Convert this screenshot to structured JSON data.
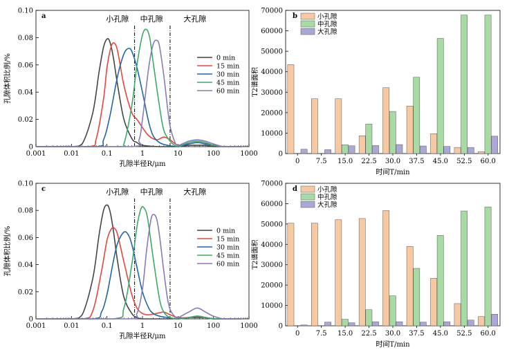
{
  "chart_data": [
    {
      "panel_label": "a",
      "type": "line",
      "xlabel": "孔隙半径R/μm",
      "ylabel": "孔隙体积比例/%",
      "x_scale": "log",
      "xlim": [
        0.001,
        1000
      ],
      "ylim": [
        0,
        0.1
      ],
      "x_ticks": [
        "0.001",
        "0.01",
        "0.1",
        "1",
        "10",
        "100",
        "1000"
      ],
      "y_ticks": [
        "0",
        "0.02",
        "0.04",
        "0.06",
        "0.08",
        "0.10"
      ],
      "dividers": [
        0.6,
        6
      ],
      "regions": [
        "小孔隙",
        "中孔隙",
        "大孔隙"
      ],
      "legend_position": "right",
      "series": [
        {
          "name": "0 min",
          "color": "#444444",
          "x": [
            0.01,
            0.02,
            0.04,
            0.06,
            0.08,
            0.1,
            0.12,
            0.15,
            0.2,
            0.3,
            0.5,
            0.7,
            1,
            3,
            10,
            20,
            35,
            60,
            100,
            200
          ],
          "y": [
            0,
            0.002,
            0.025,
            0.055,
            0.073,
            0.079,
            0.077,
            0.066,
            0.045,
            0.02,
            0.006,
            0.003,
            0.001,
            0.0,
            0.0,
            0.001,
            0.001,
            0.001,
            0.0,
            0
          ]
        },
        {
          "name": "15 min",
          "color": "#e8443a",
          "x": [
            0.03,
            0.05,
            0.08,
            0.1,
            0.13,
            0.16,
            0.2,
            0.3,
            0.5,
            0.7,
            1,
            1.5,
            2.5,
            4,
            6,
            10,
            20,
            35,
            60,
            100,
            200
          ],
          "y": [
            0,
            0.006,
            0.035,
            0.058,
            0.073,
            0.076,
            0.07,
            0.045,
            0.025,
            0.02,
            0.014,
            0.008,
            0.005,
            0.007,
            0.005,
            0.001,
            0.002,
            0.003,
            0.002,
            0.001,
            0
          ]
        },
        {
          "name": "30 min",
          "color": "#1f66a6",
          "x": [
            0.05,
            0.08,
            0.12,
            0.2,
            0.3,
            0.4,
            0.5,
            0.7,
            1,
            1.5,
            2,
            3,
            5,
            10,
            20,
            35,
            60,
            100,
            200
          ],
          "y": [
            0,
            0.005,
            0.022,
            0.052,
            0.068,
            0.072,
            0.07,
            0.058,
            0.04,
            0.018,
            0.008,
            0.003,
            0.001,
            0.0,
            0.002,
            0.003,
            0.002,
            0.001,
            0
          ]
        },
        {
          "name": "45 min",
          "color": "#3aaa66",
          "x": [
            0.2,
            0.3,
            0.5,
            0.7,
            1,
            1.3,
            1.6,
            2,
            3,
            4,
            6,
            8,
            10,
            20,
            35,
            60,
            100,
            200
          ],
          "y": [
            0,
            0.002,
            0.03,
            0.06,
            0.082,
            0.086,
            0.08,
            0.062,
            0.03,
            0.012,
            0.004,
            0.001,
            0.0,
            0.003,
            0.004,
            0.003,
            0.001,
            0
          ]
        },
        {
          "name": "60 min",
          "color": "#8a78b8",
          "x": [
            0.5,
            0.8,
            1,
            1.5,
            2,
            2.5,
            3,
            4,
            5,
            6,
            8,
            10,
            20,
            35,
            60,
            100,
            200
          ],
          "y": [
            0,
            0.005,
            0.02,
            0.058,
            0.075,
            0.078,
            0.074,
            0.052,
            0.03,
            0.015,
            0.004,
            0.001,
            0.004,
            0.005,
            0.004,
            0.002,
            0
          ]
        }
      ]
    },
    {
      "panel_label": "b",
      "type": "bar",
      "xlabel": "时间T/min",
      "ylabel": "T2谱面积",
      "ylim": [
        0,
        70000
      ],
      "y_ticks": [
        "0",
        "10000",
        "20000",
        "30000",
        "40000",
        "50000",
        "60000",
        "70000"
      ],
      "categories": [
        "0",
        "7.5",
        "15.0",
        "22.5",
        "30.0",
        "37.5",
        "45.0",
        "52.5",
        "60.0"
      ],
      "series": [
        {
          "name": "小孔隙",
          "color": "#f7c9a3",
          "values": [
            43500,
            26800,
            26800,
            8700,
            32200,
            23200,
            9700,
            3000,
            900
          ]
        },
        {
          "name": "中孔隙",
          "color": "#a8dba4",
          "values": [
            0,
            0,
            4300,
            14400,
            20600,
            37300,
            56300,
            67700,
            67700
          ]
        },
        {
          "name": "大孔隙",
          "color": "#a9a8d6",
          "values": [
            2100,
            1900,
            3800,
            3900,
            4400,
            3700,
            3500,
            3000,
            8500
          ]
        }
      ]
    },
    {
      "panel_label": "c",
      "type": "line",
      "xlabel": "孔隙半径R/μm",
      "ylabel": "孔隙体积比例/%",
      "x_scale": "log",
      "xlim": [
        0.001,
        1000
      ],
      "ylim": [
        0,
        0.1
      ],
      "x_ticks": [
        "0.001",
        "0.01",
        "0.1",
        "1",
        "10",
        "100",
        "1000"
      ],
      "y_ticks": [
        "0",
        "0.02",
        "0.04",
        "0.06",
        "0.08",
        "0.10"
      ],
      "dividers": [
        0.6,
        6
      ],
      "regions": [
        "小孔隙",
        "中孔隙",
        "大孔隙"
      ],
      "legend_position": "right",
      "series": [
        {
          "name": "0 min",
          "color": "#444444",
          "x": [
            0.01,
            0.02,
            0.04,
            0.06,
            0.08,
            0.1,
            0.12,
            0.15,
            0.2,
            0.3,
            0.5,
            0.7,
            1,
            3,
            10,
            20,
            35,
            60,
            100,
            200
          ],
          "y": [
            0,
            0.003,
            0.03,
            0.062,
            0.08,
            0.084,
            0.08,
            0.066,
            0.042,
            0.016,
            0.004,
            0.001,
            0.0,
            0.0,
            0.0,
            0.001,
            0.001,
            0.001,
            0.0,
            0
          ]
        },
        {
          "name": "15 min",
          "color": "#e8443a",
          "x": [
            0.02,
            0.04,
            0.07,
            0.1,
            0.13,
            0.16,
            0.2,
            0.3,
            0.5,
            0.7,
            1,
            1.5,
            2.5,
            4,
            6,
            10,
            20,
            35,
            60,
            100,
            200
          ],
          "y": [
            0,
            0.006,
            0.035,
            0.058,
            0.066,
            0.067,
            0.062,
            0.042,
            0.018,
            0.008,
            0.004,
            0.003,
            0.004,
            0.005,
            0.003,
            0.001,
            0.001,
            0.002,
            0.001,
            0.0,
            0
          ]
        },
        {
          "name": "30 min",
          "color": "#1f66a6",
          "x": [
            0.04,
            0.07,
            0.1,
            0.15,
            0.2,
            0.3,
            0.4,
            0.5,
            0.7,
            1,
            1.5,
            2,
            3,
            5,
            10,
            20,
            35,
            60,
            100,
            200
          ],
          "y": [
            0,
            0.005,
            0.018,
            0.042,
            0.056,
            0.064,
            0.062,
            0.055,
            0.038,
            0.02,
            0.008,
            0.004,
            0.002,
            0.001,
            0.0,
            0.001,
            0.002,
            0.001,
            0.0,
            0
          ]
        },
        {
          "name": "45 min",
          "color": "#3aaa66",
          "x": [
            0.15,
            0.3,
            0.5,
            0.7,
            0.9,
            1.1,
            1.4,
            2,
            3,
            4,
            6,
            10,
            20,
            35,
            60,
            100,
            200
          ],
          "y": [
            0,
            0.008,
            0.04,
            0.068,
            0.081,
            0.082,
            0.074,
            0.045,
            0.015,
            0.005,
            0.001,
            0.0,
            0.001,
            0.002,
            0.001,
            0.0,
            0
          ]
        },
        {
          "name": "60 min",
          "color": "#8a78b8",
          "x": [
            0.4,
            0.7,
            1,
            1.3,
            1.7,
            2,
            2.5,
            3,
            4,
            5,
            6,
            8,
            10,
            20,
            35,
            60,
            100,
            200
          ],
          "y": [
            0,
            0.004,
            0.022,
            0.05,
            0.072,
            0.077,
            0.074,
            0.062,
            0.035,
            0.016,
            0.007,
            0.002,
            0.001,
            0.005,
            0.008,
            0.005,
            0.002,
            0
          ]
        }
      ]
    },
    {
      "panel_label": "d",
      "type": "bar",
      "xlabel": "时间T/min",
      "ylabel": "T2谱面积",
      "ylim": [
        0,
        70000
      ],
      "y_ticks": [
        "0",
        "10000",
        "20000",
        "30000",
        "40000",
        "50000",
        "60000",
        "70000"
      ],
      "categories": [
        "0",
        "7.5",
        "15.0",
        "22.5",
        "30.0",
        "37.5",
        "45.0",
        "52.5",
        "60.0"
      ],
      "series": [
        {
          "name": "小孔隙",
          "color": "#f7c9a3",
          "values": [
            50400,
            50400,
            52100,
            52700,
            56600,
            39000,
            23300,
            10900,
            4500
          ]
        },
        {
          "name": "中孔隙",
          "color": "#a8dba4",
          "values": [
            0,
            0,
            3200,
            7900,
            14700,
            28200,
            44400,
            56400,
            58400
          ]
        },
        {
          "name": "大孔隙",
          "color": "#a9a8d6",
          "values": [
            400,
            1800,
            1500,
            2000,
            2000,
            1800,
            2000,
            2800,
            5700
          ]
        }
      ]
    }
  ]
}
